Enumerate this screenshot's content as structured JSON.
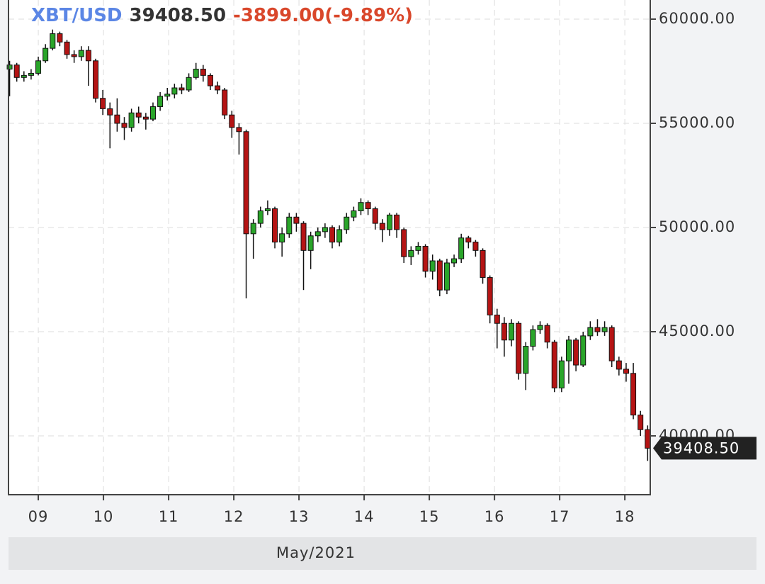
{
  "chart_data": {
    "type": "candlestick",
    "symbol": "XBT/USD",
    "price_label": "39408.50",
    "change_label": "-3899.00(-9.89%)",
    "xlabel": "May/2021",
    "xlim": [
      8.543,
      18.39
    ],
    "ylim": [
      37177,
      60918
    ],
    "xticks": [
      {
        "value": 9,
        "label": "09"
      },
      10,
      11,
      12,
      13,
      14,
      15,
      16,
      17,
      18
    ],
    "yticks": [
      {
        "value": 40000,
        "label": "40000.00"
      },
      {
        "value": 45000,
        "label": "45000.00"
      },
      {
        "value": 50000,
        "label": "50000.00"
      },
      {
        "value": 55000,
        "label": "55000.00"
      },
      {
        "value": 60000,
        "label": "60000.00"
      }
    ],
    "grid": true,
    "up_color": "#2aa52a",
    "down_color": "#b51414",
    "last_price": {
      "value": 39408.5,
      "label": "39408.50"
    },
    "x": [
      8.56,
      8.67,
      8.78,
      8.89,
      9.0,
      9.11,
      9.22,
      9.33,
      9.44,
      9.55,
      9.66,
      9.77,
      9.88,
      9.99,
      10.1,
      10.21,
      10.32,
      10.43,
      10.54,
      10.65,
      10.76,
      10.87,
      10.98,
      11.09,
      11.2,
      11.31,
      11.42,
      11.53,
      11.64,
      11.75,
      11.86,
      11.97,
      12.08,
      12.19,
      12.3,
      12.41,
      12.52,
      12.63,
      12.74,
      12.85,
      12.96,
      13.07,
      13.18,
      13.29,
      13.4,
      13.51,
      13.62,
      13.73,
      13.84,
      13.95,
      14.06,
      14.17,
      14.28,
      14.39,
      14.5,
      14.61,
      14.72,
      14.83,
      14.94,
      15.05,
      15.16,
      15.27,
      15.38,
      15.49,
      15.6,
      15.71,
      15.82,
      15.93,
      16.04,
      16.15,
      16.26,
      16.37,
      16.48,
      16.59,
      16.7,
      16.81,
      16.92,
      17.03,
      17.14,
      17.25,
      17.36,
      17.47,
      17.58,
      17.69,
      17.8,
      17.91,
      18.02,
      18.13,
      18.24,
      18.35
    ],
    "open": [
      57600,
      57800,
      57200,
      57300,
      57400,
      58000,
      58600,
      59300,
      58900,
      58300,
      58200,
      58500,
      58000,
      56200,
      55700,
      55400,
      55000,
      54800,
      55500,
      55300,
      55200,
      55800,
      56300,
      56400,
      56700,
      56600,
      57200,
      57600,
      57300,
      56800,
      56600,
      55400,
      54800,
      54600,
      49700,
      50200,
      50800,
      50900,
      49300,
      49700,
      50500,
      50200,
      48900,
      49600,
      49800,
      50000,
      49300,
      49900,
      50500,
      50800,
      51200,
      50900,
      50200,
      49900,
      50600,
      49900,
      48600,
      48900,
      49100,
      47900,
      48400,
      47000,
      48300,
      48500,
      49500,
      49300,
      48900,
      47600,
      45800,
      45400,
      44600,
      45400,
      43000,
      44300,
      45100,
      45300,
      44500,
      42300,
      43600,
      44600,
      43400,
      44800,
      45200,
      45000,
      45200,
      43600,
      43200,
      43000,
      41000,
      40300
    ],
    "high": [
      58000,
      57900,
      57500,
      57600,
      58200,
      58800,
      59500,
      59400,
      59000,
      58500,
      58700,
      58700,
      58100,
      56600,
      56000,
      56200,
      55300,
      55700,
      55800,
      55500,
      56000,
      56500,
      56700,
      56900,
      56900,
      57400,
      57900,
      57800,
      57400,
      57000,
      56700,
      55600,
      55000,
      54700,
      50400,
      51000,
      51300,
      51000,
      50000,
      50700,
      50700,
      50300,
      49800,
      50000,
      50200,
      50100,
      50100,
      50700,
      51000,
      51400,
      51300,
      51000,
      50400,
      50700,
      50700,
      50000,
      49100,
      49300,
      49200,
      48700,
      48500,
      48500,
      48700,
      49700,
      49600,
      49400,
      49000,
      47700,
      46100,
      45700,
      45600,
      45500,
      44500,
      45300,
      45500,
      45400,
      44600,
      43800,
      44800,
      44700,
      45000,
      45500,
      45600,
      45500,
      45300,
      43800,
      43500,
      43500,
      41200,
      40500
    ],
    "low": [
      56300,
      57000,
      57000,
      57100,
      57300,
      57900,
      58500,
      58700,
      58100,
      57900,
      58000,
      56800,
      56000,
      55400,
      53800,
      54600,
      54200,
      54600,
      55000,
      54700,
      55100,
      55600,
      56100,
      56200,
      56400,
      56500,
      57100,
      57000,
      56600,
      56400,
      55200,
      54300,
      53500,
      46600,
      48500,
      50000,
      50600,
      49000,
      48600,
      49500,
      49800,
      47000,
      48000,
      49300,
      49500,
      49000,
      49100,
      49700,
      50300,
      50600,
      50600,
      49900,
      49300,
      49600,
      49500,
      48300,
      48200,
      48700,
      47600,
      47500,
      46700,
      46800,
      48100,
      48300,
      49000,
      48600,
      47300,
      45400,
      44200,
      43800,
      44300,
      42700,
      42200,
      44100,
      44900,
      44200,
      42100,
      42100,
      42500,
      43100,
      43300,
      44600,
      44800,
      44800,
      43300,
      42900,
      42600,
      40800,
      40000,
      38800
    ],
    "close": [
      57800,
      57200,
      57300,
      57400,
      58000,
      58600,
      59300,
      58900,
      58300,
      58200,
      58500,
      58000,
      56200,
      55700,
      55400,
      55000,
      54800,
      55500,
      55300,
      55200,
      55800,
      56300,
      56400,
      56700,
      56600,
      57200,
      57600,
      57300,
      56800,
      56600,
      55400,
      54800,
      54600,
      49700,
      50200,
      50800,
      50900,
      49300,
      49700,
      50500,
      50200,
      48900,
      49600,
      49800,
      50000,
      49300,
      49900,
      50500,
      50800,
      51200,
      50900,
      50200,
      49900,
      50600,
      49900,
      48600,
      48900,
      49100,
      47900,
      48400,
      47000,
      48300,
      48500,
      49500,
      49300,
      48900,
      47600,
      45800,
      45400,
      44600,
      45400,
      43000,
      44300,
      45100,
      45300,
      44500,
      42300,
      43600,
      44600,
      43400,
      44800,
      45200,
      45000,
      45200,
      43600,
      43200,
      43000,
      41000,
      40300,
      39408.5
    ]
  }
}
